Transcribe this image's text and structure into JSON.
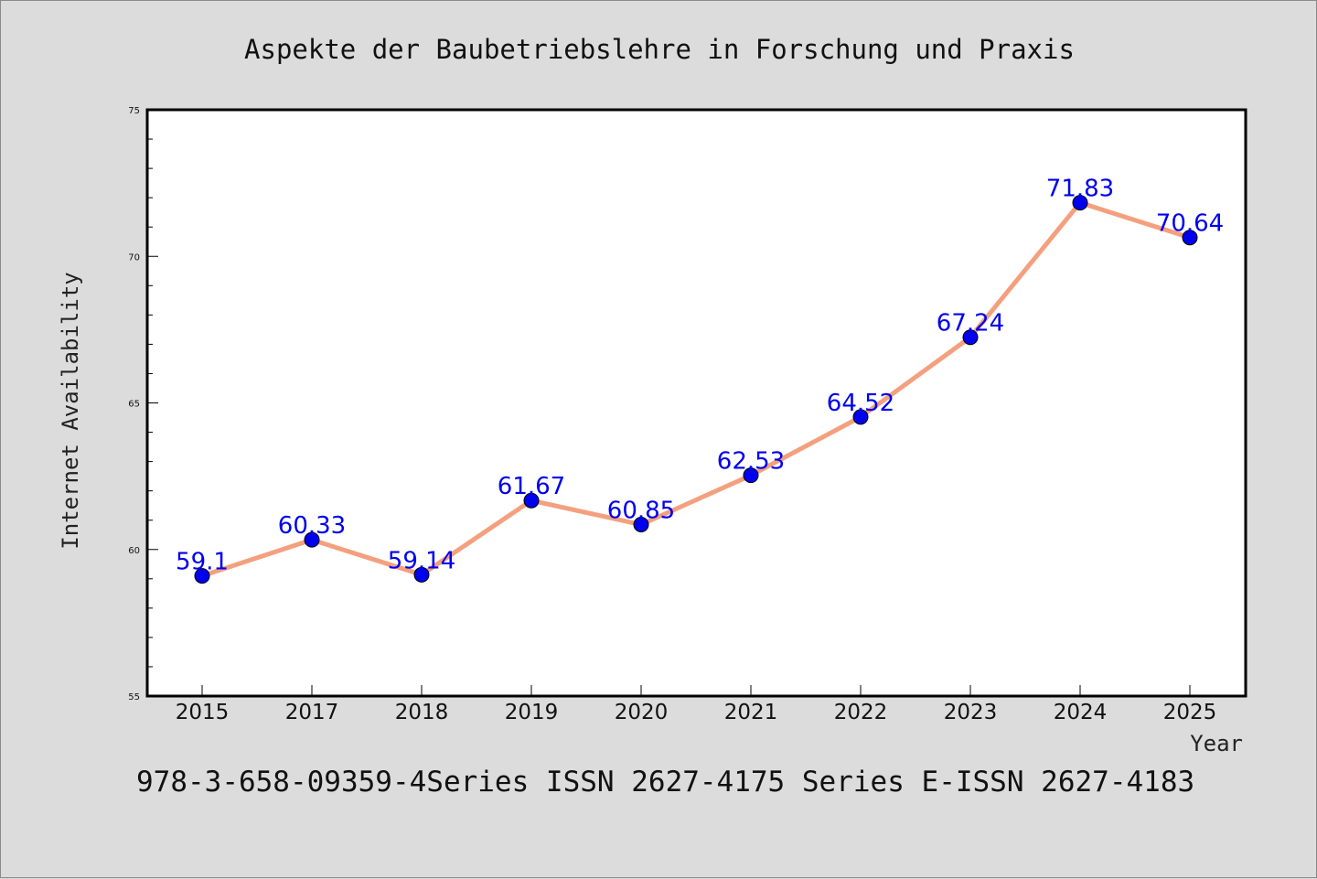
{
  "chart_data": {
    "type": "line",
    "title": "Aspekte der Baubetriebslehre in Forschung und Praxis",
    "xlabel": "Year",
    "ylabel": "Internet Availability",
    "categories": [
      "2015",
      "2017",
      "2018",
      "2019",
      "2020",
      "2021",
      "2022",
      "2023",
      "2024",
      "2025"
    ],
    "series": [
      {
        "values": [
          59.1,
          60.33,
          59.14,
          61.67,
          60.85,
          62.53,
          64.52,
          67.24,
          71.83,
          70.64
        ],
        "labels": [
          "59.1",
          "60.33",
          "59.14",
          "61.67",
          "60.85",
          "62.53",
          "64.52",
          "67.24",
          "71.83",
          "70.64"
        ]
      }
    ],
    "ylim": [
      55,
      75
    ],
    "yticks": [
      55,
      60,
      65,
      70,
      75
    ],
    "grid": false,
    "legend": "none",
    "line_color": "#f4a07e",
    "marker_color": "#0000ee"
  },
  "footer": "978-3-658-09359-4Series ISSN 2627-4175 Series E-ISSN 2627-4183"
}
